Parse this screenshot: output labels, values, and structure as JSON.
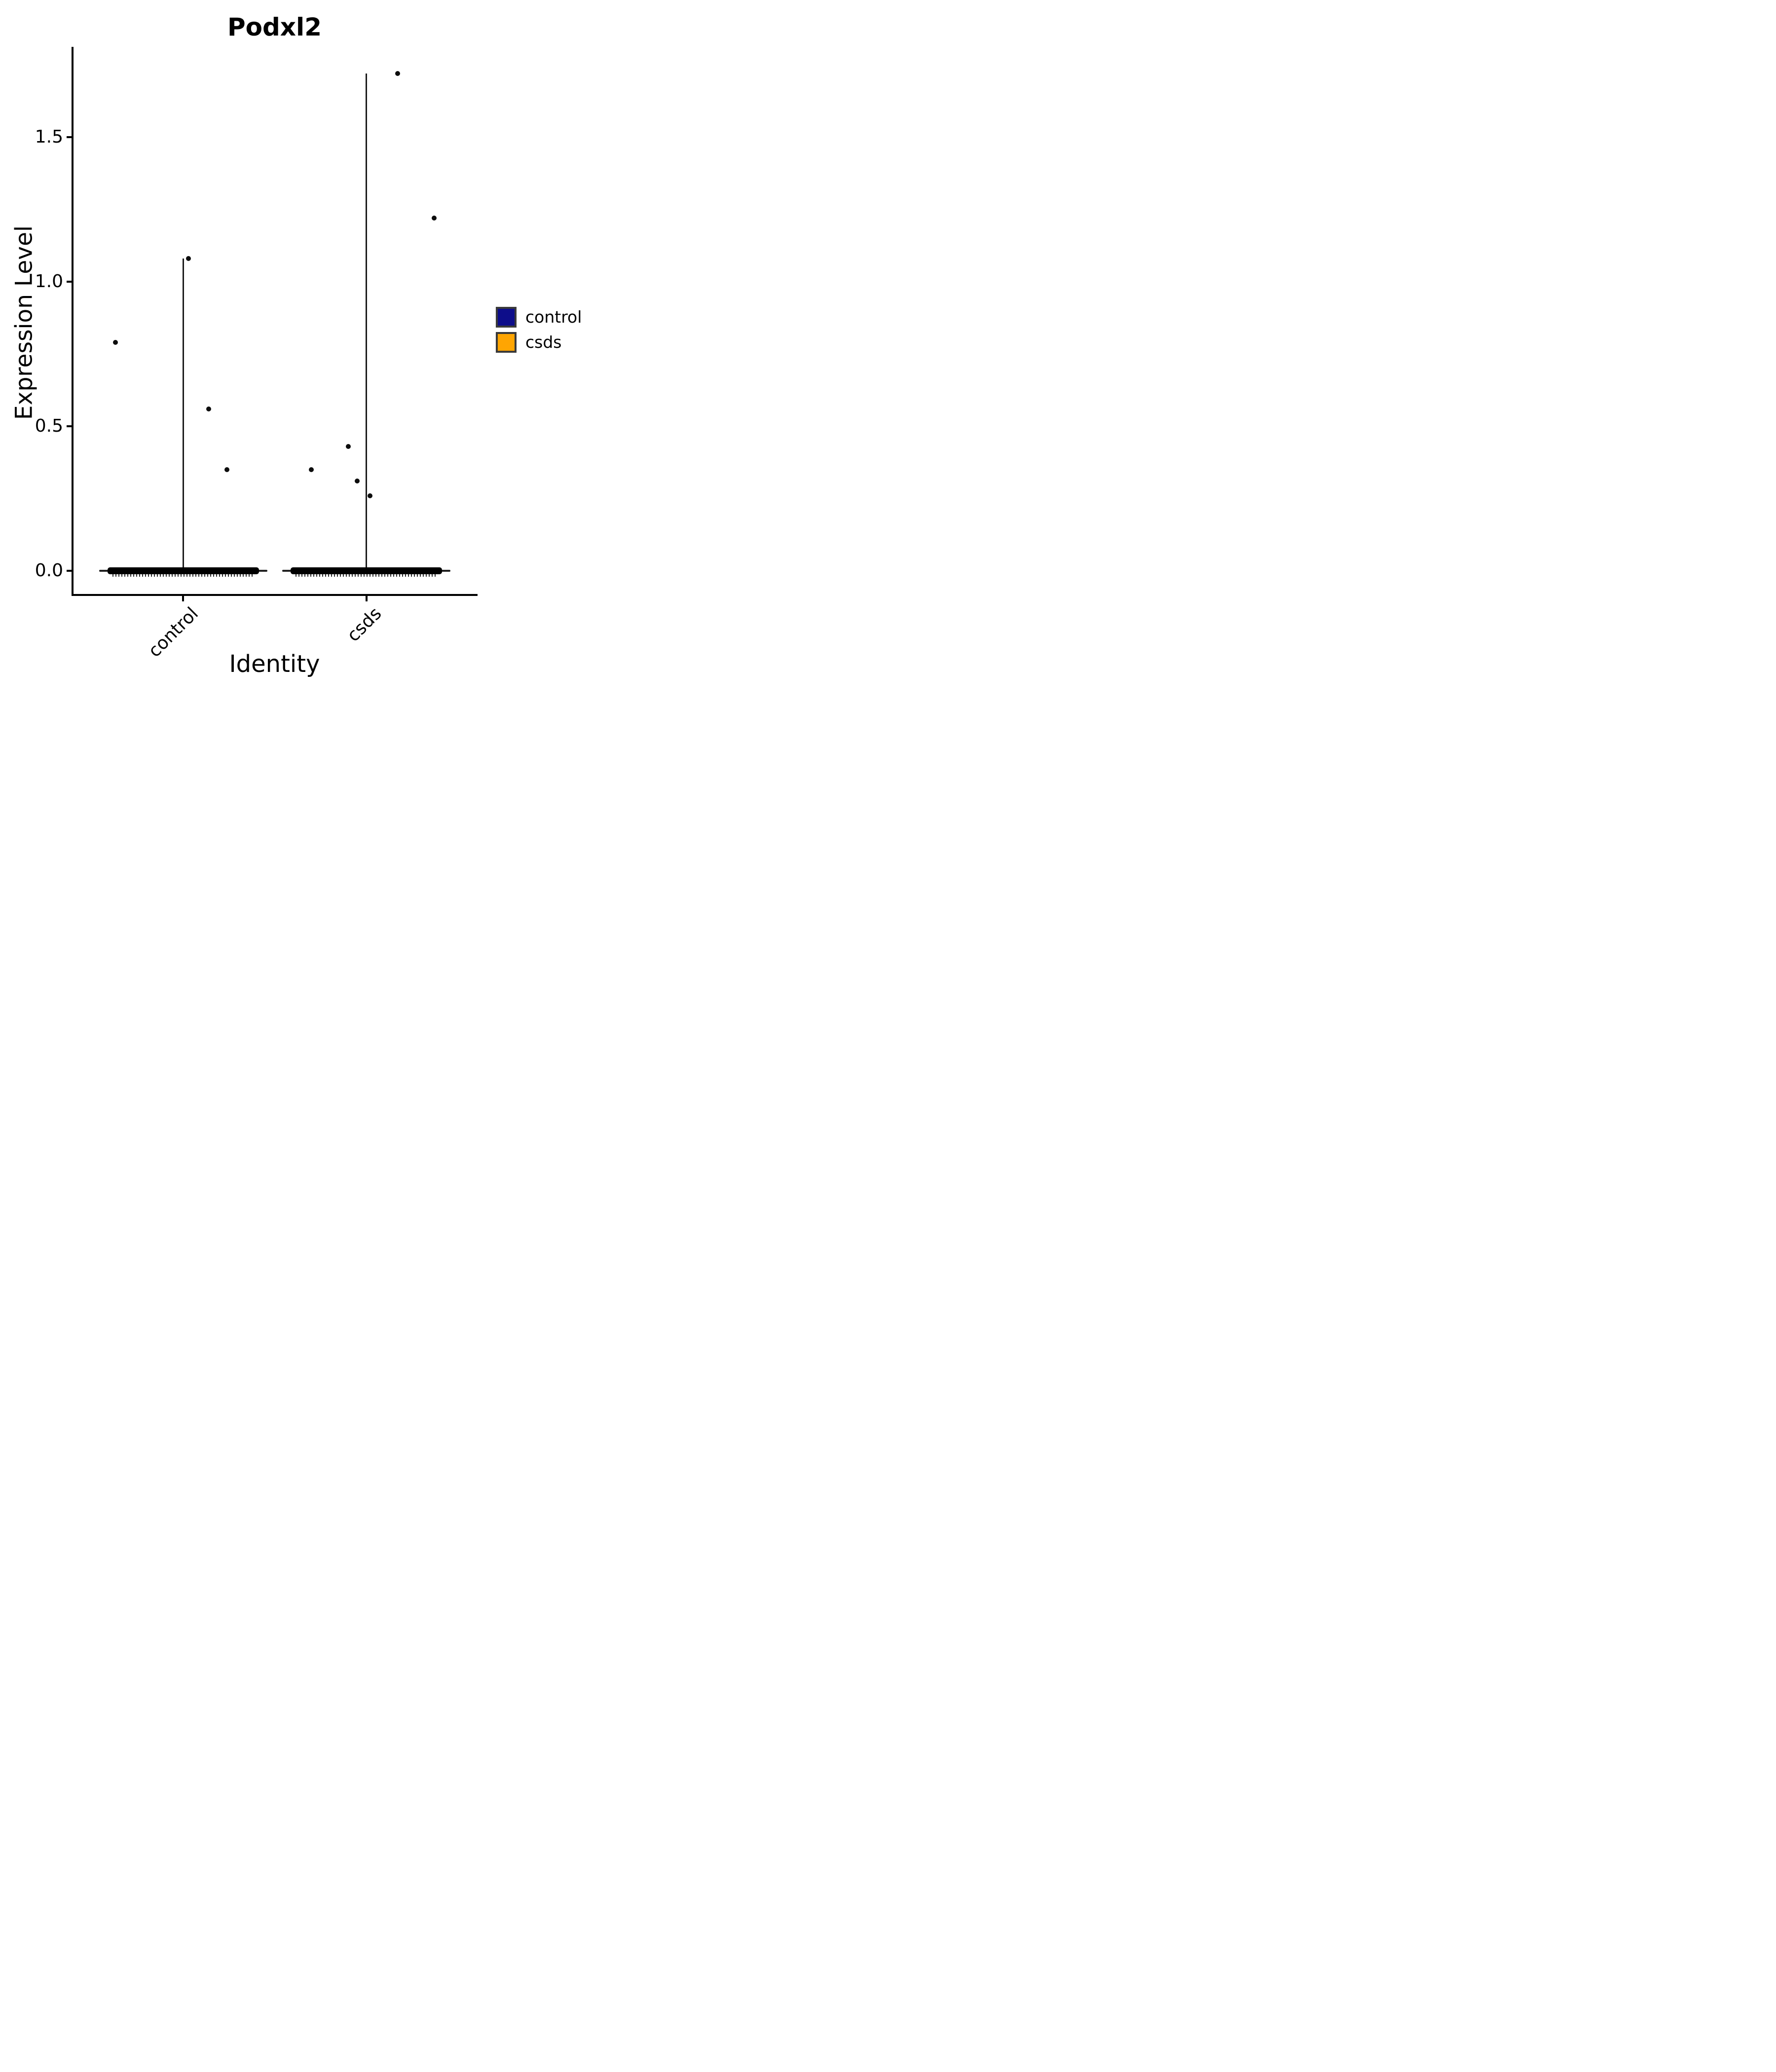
{
  "figure": {
    "title": "Podxl2"
  },
  "axes": {
    "x_label": "Identity",
    "y_label": "Expression Level"
  },
  "legend": {
    "position": "right",
    "entries": [
      {
        "label": "control",
        "color": "#0d0d8a"
      },
      {
        "label": "csds",
        "color": "#ffa502"
      }
    ]
  },
  "chart_data": {
    "type": "violin",
    "title": "Podxl2",
    "xlabel": "Identity",
    "ylabel": "Expression Level",
    "categories": [
      "control",
      "csds"
    ],
    "y_ticks": [
      0.0,
      0.5,
      1.0,
      1.5
    ],
    "y_tick_labels": [
      "0.0",
      "0.5",
      "1.0",
      "1.5"
    ],
    "ylim": [
      -0.09,
      1.81
    ],
    "grid": false,
    "legend_position": "right",
    "note": "Violins are collapsed to a flat bar at 0 (nearly all cells have zero expression); only scattered non-zero cells are visible as points.",
    "series": [
      {
        "name": "control",
        "color": "#0d0d8a",
        "zero_bar": {
          "value": 0.0,
          "halfwidth_units": 0.46
        },
        "stem": {
          "from": 0.0,
          "to": 1.08
        },
        "points": [
          {
            "dx": 0.03,
            "y": 1.08
          },
          {
            "dx": -0.37,
            "y": 0.79
          },
          {
            "dx": 0.14,
            "y": 0.56
          },
          {
            "dx": 0.24,
            "y": 0.35
          }
        ]
      },
      {
        "name": "csds",
        "color": "#ffa502",
        "zero_bar": {
          "value": 0.0,
          "halfwidth_units": 0.46
        },
        "stem": {
          "from": 0.0,
          "to": 1.72
        },
        "points": [
          {
            "dx": 0.17,
            "y": 1.72
          },
          {
            "dx": 0.37,
            "y": 1.22
          },
          {
            "dx": -0.1,
            "y": 0.43
          },
          {
            "dx": -0.3,
            "y": 0.35
          },
          {
            "dx": -0.05,
            "y": 0.31
          },
          {
            "dx": 0.02,
            "y": 0.26
          }
        ]
      }
    ]
  }
}
